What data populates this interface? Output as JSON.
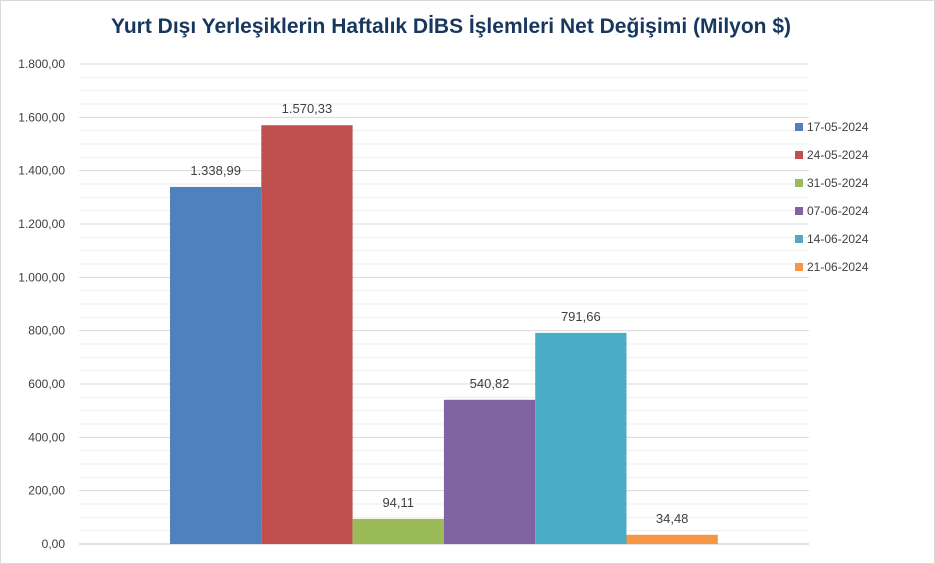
{
  "chart_data": {
    "type": "bar",
    "title": "Yurt Dışı Yerleşiklerin Haftalık DİBS İşlemleri Net Değişimi (Milyon $)",
    "xlabel": "",
    "ylabel": "",
    "ylim": [
      0,
      1800
    ],
    "yticks": [
      0,
      200,
      400,
      600,
      800,
      1000,
      1200,
      1400,
      1600,
      1800
    ],
    "ytick_labels": [
      "0,00",
      "200,00",
      "400,00",
      "600,00",
      "800,00",
      "1.000,00",
      "1.200,00",
      "1.400,00",
      "1.600,00",
      "1.800,00"
    ],
    "grid": true,
    "legend_position": "right",
    "series": [
      {
        "name": "17-05-2024",
        "value": 1338.99,
        "label": "1.338,99",
        "color": "#4f81bd"
      },
      {
        "name": "24-05-2024",
        "value": 1570.33,
        "label": "1.570,33",
        "color": "#c0504d"
      },
      {
        "name": "31-05-2024",
        "value": 94.11,
        "label": "94,11",
        "color": "#9bbb59"
      },
      {
        "name": "07-06-2024",
        "value": 540.82,
        "label": "540,82",
        "color": "#8064a2"
      },
      {
        "name": "14-06-2024",
        "value": 791.66,
        "label": "791,66",
        "color": "#4bacc6"
      },
      {
        "name": "21-06-2024",
        "value": 34.48,
        "label": "34,48",
        "color": "#f79646"
      }
    ]
  }
}
